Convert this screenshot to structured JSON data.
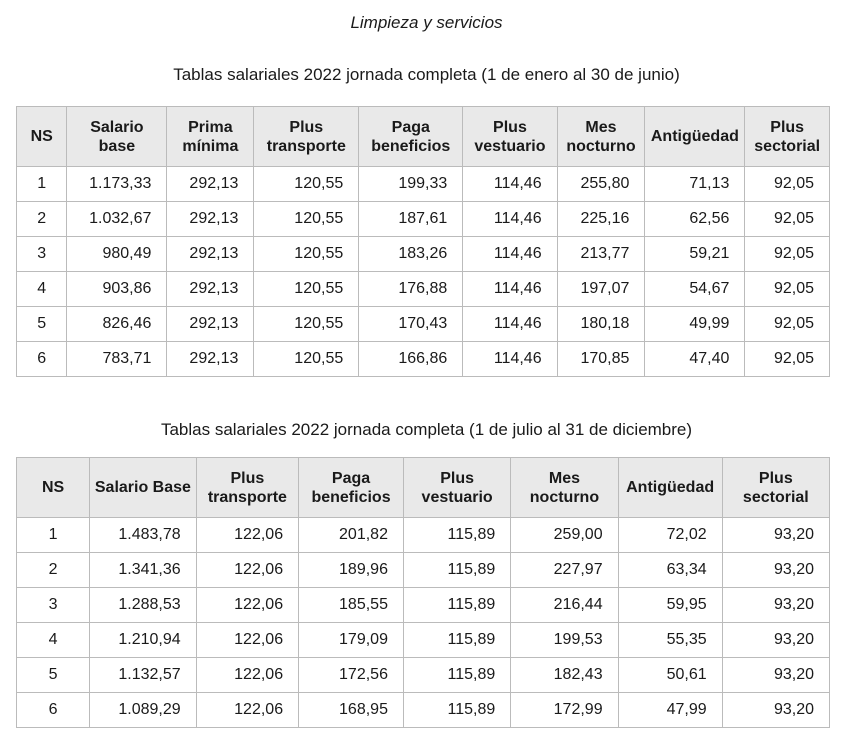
{
  "page": {
    "title": "Limpieza y servicios"
  },
  "colors": {
    "header_bg": "#e9e9e9",
    "border": "#bbbbbb",
    "text": "#1a1a1a"
  },
  "tables": [
    {
      "caption": "Tablas salariales 2022 jornada completa (1 de enero al 30 de junio)",
      "columns": [
        "NS",
        "Salario base",
        "Prima mínima",
        "Plus transporte",
        "Paga beneficios",
        "Plus vestuario",
        "Mes nocturno",
        "Antigüedad",
        "Plus sectorial"
      ],
      "rows": [
        [
          "1",
          "1.173,33",
          "292,13",
          "120,55",
          "199,33",
          "114,46",
          "255,80",
          "71,13",
          "92,05"
        ],
        [
          "2",
          "1.032,67",
          "292,13",
          "120,55",
          "187,61",
          "114,46",
          "225,16",
          "62,56",
          "92,05"
        ],
        [
          "3",
          "980,49",
          "292,13",
          "120,55",
          "183,26",
          "114,46",
          "213,77",
          "59,21",
          "92,05"
        ],
        [
          "4",
          "903,86",
          "292,13",
          "120,55",
          "176,88",
          "114,46",
          "197,07",
          "54,67",
          "92,05"
        ],
        [
          "5",
          "826,46",
          "292,13",
          "120,55",
          "170,43",
          "114,46",
          "180,18",
          "49,99",
          "92,05"
        ],
        [
          "6",
          "783,71",
          "292,13",
          "120,55",
          "166,86",
          "114,46",
          "170,85",
          "47,40",
          "92,05"
        ]
      ]
    },
    {
      "caption": "Tablas salariales 2022 jornada completa (1 de julio al 31 de diciembre)",
      "columns": [
        "NS",
        "Salario Base",
        "Plus transporte",
        "Paga beneficios",
        "Plus vestuario",
        "Mes nocturno",
        "Antigüedad",
        "Plus sectorial"
      ],
      "rows": [
        [
          "1",
          "1.483,78",
          "122,06",
          "201,82",
          "115,89",
          "259,00",
          "72,02",
          "93,20"
        ],
        [
          "2",
          "1.341,36",
          "122,06",
          "189,96",
          "115,89",
          "227,97",
          "63,34",
          "93,20"
        ],
        [
          "3",
          "1.288,53",
          "122,06",
          "185,55",
          "115,89",
          "216,44",
          "59,95",
          "93,20"
        ],
        [
          "4",
          "1.210,94",
          "122,06",
          "179,09",
          "115,89",
          "199,53",
          "55,35",
          "93,20"
        ],
        [
          "5",
          "1.132,57",
          "122,06",
          "172,56",
          "115,89",
          "182,43",
          "50,61",
          "93,20"
        ],
        [
          "6",
          "1.089,29",
          "122,06",
          "168,95",
          "115,89",
          "172,99",
          "47,99",
          "93,20"
        ]
      ]
    }
  ]
}
